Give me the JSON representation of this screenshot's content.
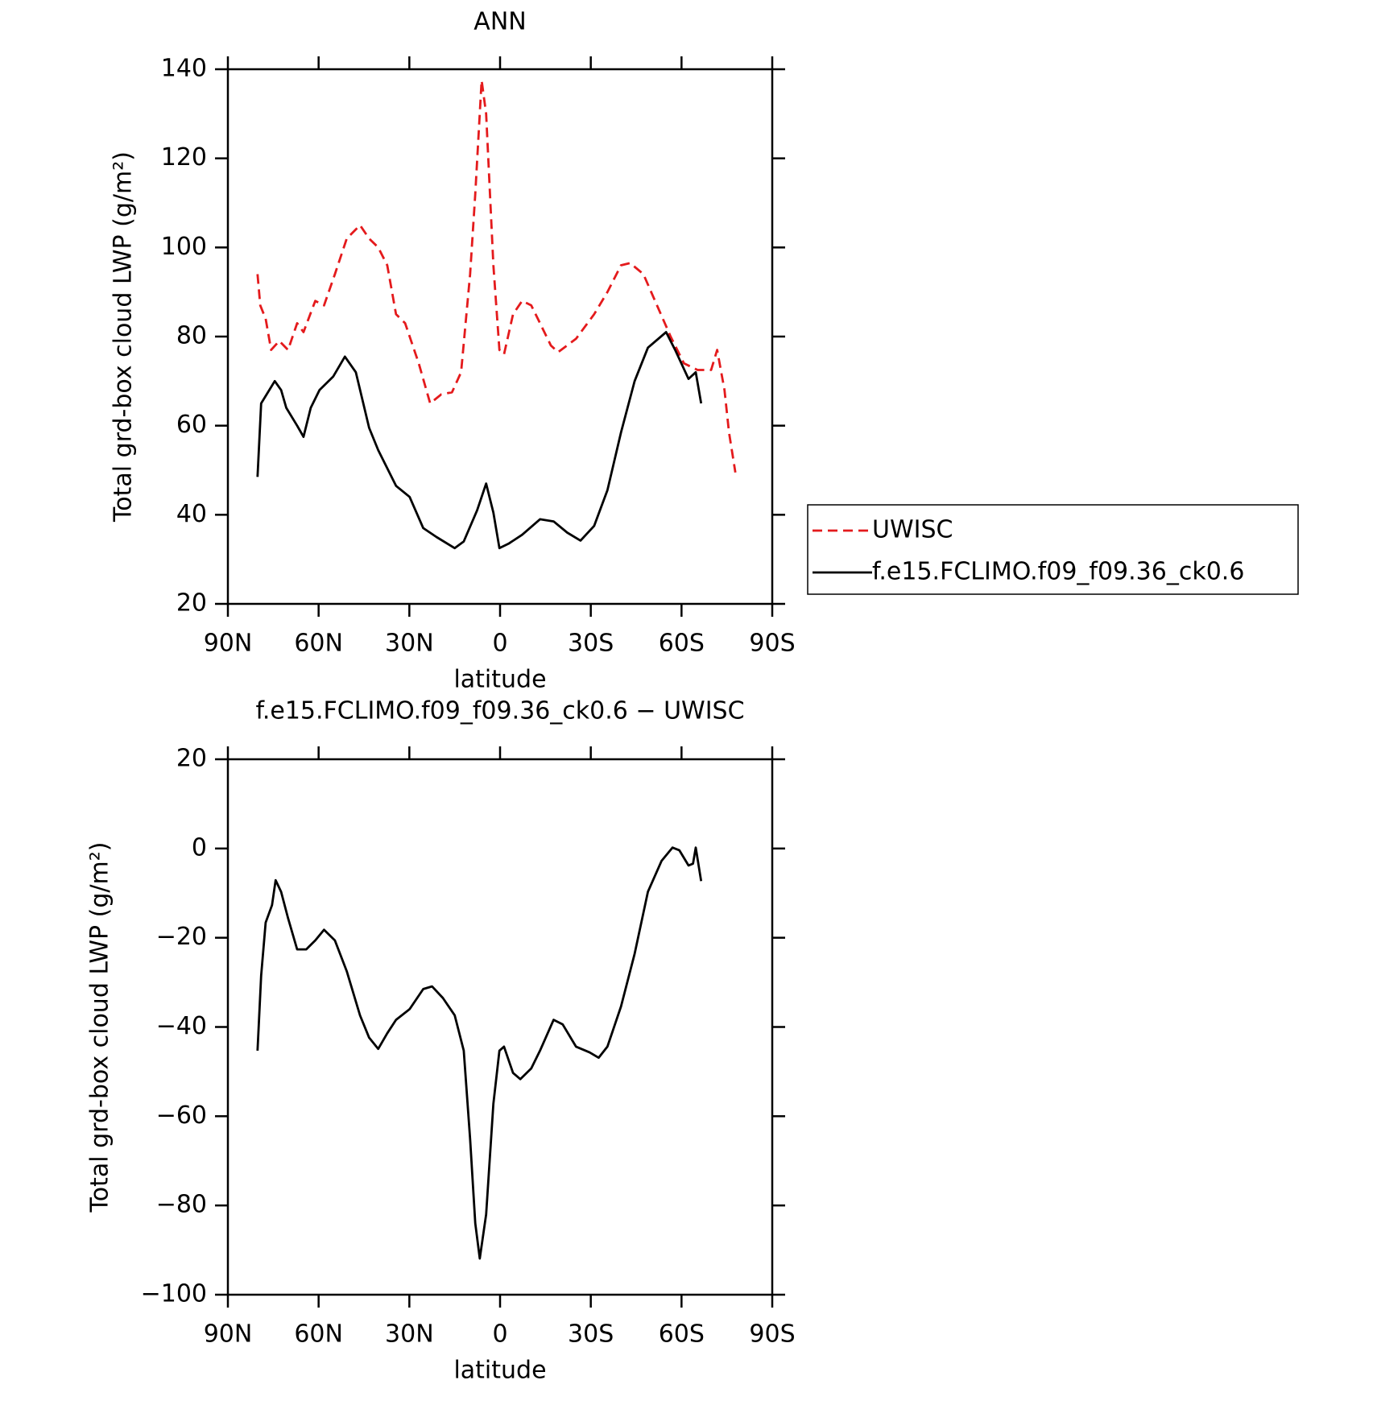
{
  "chart_data": [
    {
      "type": "line",
      "title": "ANN",
      "xlabel": "latitude",
      "ylabel": "Total grd-box cloud LWP (g/m²)",
      "xlim": [
        90,
        -90
      ],
      "xticks": [
        {
          "value": 90,
          "label": "90N"
        },
        {
          "value": 60,
          "label": "60N"
        },
        {
          "value": 30,
          "label": "30N"
        },
        0,
        {
          "value": -30,
          "label": "30S"
        },
        {
          "value": -60,
          "label": "60S"
        },
        {
          "value": -90,
          "label": "90S"
        }
      ],
      "ylim": [
        20,
        140
      ],
      "yticks": [
        20,
        40,
        60,
        80,
        100,
        120,
        140
      ],
      "legend": "right",
      "series": [
        {
          "name": "UWISC",
          "color": "#e41a1c",
          "style": "dashed",
          "x": [
            80.2,
            79.3,
            77.5,
            75.7,
            73.0,
            70.1,
            67.1,
            65.0,
            61.1,
            58.2,
            54.6,
            50.7,
            46.3,
            43.3,
            40.3,
            37.3,
            34.4,
            31.4,
            26.9,
            23.1,
            19.5,
            15.9,
            12.9,
            9.9,
            8.2,
            6.1,
            4.6,
            2.2,
            0.2,
            -1.3,
            -4.3,
            -7.3,
            -10.3,
            -13.2,
            -16.8,
            -19.2,
            -25.1,
            -31.1,
            -35.5,
            -40.0,
            -43.0,
            -47.4,
            -51.9,
            -56.4,
            -60.8,
            -65.3,
            -69.8,
            -71.8,
            -74.2,
            -75.7,
            -77.8
          ],
          "values": [
            94,
            87,
            84,
            77,
            79,
            77,
            83,
            81,
            88,
            87,
            94,
            102,
            105,
            102,
            100,
            96,
            85,
            83,
            74,
            65,
            67,
            67.5,
            72,
            94,
            112,
            137.5,
            130,
            96,
            77,
            76,
            85,
            88,
            87,
            83,
            78,
            76.5,
            79.5,
            85,
            90,
            96,
            96.5,
            94,
            87,
            80,
            74,
            72.5,
            72.5,
            77,
            68,
            58.5,
            49.5
          ]
        },
        {
          "name": "f.e15.FCLIMO.f09_f09.36_ck0.6",
          "color": "#000000",
          "style": "solid",
          "x": [
            80.2,
            79.0,
            77.2,
            74.5,
            72.4,
            70.7,
            67.1,
            65.0,
            62.6,
            59.7,
            55.2,
            51.3,
            47.7,
            43.3,
            40.3,
            34.4,
            29.9,
            25.4,
            21.0,
            15.0,
            12.0,
            7.6,
            4.6,
            2.2,
            0.2,
            -2.8,
            -7.3,
            -13.2,
            -17.7,
            -22.2,
            -26.6,
            -31.1,
            -35.5,
            -40.0,
            -44.5,
            -48.9,
            -54.9,
            -57.9,
            -62.3,
            -64.7,
            -66.5
          ],
          "values": [
            48.5,
            65,
            67,
            70,
            68,
            64,
            60,
            57.5,
            64,
            68,
            71,
            75.5,
            72,
            59.5,
            54.5,
            46.5,
            44,
            37,
            35,
            32.5,
            34,
            41,
            47,
            40.5,
            32.5,
            33.5,
            35.5,
            39,
            38.5,
            36,
            34.2,
            37.5,
            45.5,
            58.5,
            70,
            77.5,
            81,
            77,
            70.5,
            72,
            65
          ]
        }
      ]
    },
    {
      "type": "line",
      "title": "f.e15.FCLIMO.f09_f09.36_ck0.6 − UWISC",
      "xlabel": "latitude",
      "ylabel": "Total grd-box cloud LWP (g/m²)",
      "xlim": [
        90,
        -90
      ],
      "xticks": [
        {
          "value": 90,
          "label": "90N"
        },
        {
          "value": 60,
          "label": "60N"
        },
        {
          "value": 30,
          "label": "30N"
        },
        0,
        {
          "value": -30,
          "label": "30S"
        },
        {
          "value": -60,
          "label": "60S"
        },
        {
          "value": -90,
          "label": "90S"
        }
      ],
      "ylim": [
        -100,
        20
      ],
      "yticks": [
        {
          "value": -100,
          "label": "−100"
        },
        {
          "value": -80,
          "label": "−80"
        },
        {
          "value": -60,
          "label": "−60"
        },
        {
          "value": -40,
          "label": "−40"
        },
        {
          "value": -20,
          "label": "−20"
        },
        0,
        20
      ],
      "series": [
        {
          "color": "#000000",
          "style": "solid",
          "x": [
            80.2,
            79.0,
            77.5,
            75.4,
            74.2,
            72.4,
            70.1,
            67.1,
            64.1,
            61.1,
            58.2,
            54.6,
            50.7,
            46.3,
            43.3,
            40.3,
            37.3,
            34.4,
            29.9,
            25.4,
            22.5,
            18.9,
            15.0,
            12.0,
            9.9,
            8.2,
            6.7,
            4.6,
            2.2,
            0.2,
            -1.3,
            -4.3,
            -6.7,
            -10.3,
            -13.2,
            -17.7,
            -20.7,
            -25.1,
            -29.6,
            -32.6,
            -35.5,
            -40.0,
            -44.5,
            -48.9,
            -53.4,
            -57.0,
            -59.3,
            -62.3,
            -63.8,
            -64.7,
            -66.5
          ],
          "values": [
            -45.3,
            -28.5,
            -16.6,
            -12.7,
            -7.1,
            -9.7,
            -15.6,
            -22.6,
            -22.6,
            -20.6,
            -18.2,
            -20.6,
            -27.5,
            -37.4,
            -42.4,
            -44.9,
            -41.4,
            -38.4,
            -36.0,
            -31.5,
            -30.9,
            -33.5,
            -37.4,
            -45.3,
            -65.1,
            -84.0,
            -91.9,
            -82.0,
            -57.2,
            -45.3,
            -44.4,
            -50.3,
            -51.7,
            -49.3,
            -45.3,
            -38.4,
            -39.4,
            -44.4,
            -45.7,
            -46.9,
            -44.4,
            -35.4,
            -23.6,
            -9.7,
            -2.8,
            0.2,
            -0.4,
            -3.8,
            -3.4,
            0.2,
            -7.3
          ]
        }
      ]
    }
  ]
}
